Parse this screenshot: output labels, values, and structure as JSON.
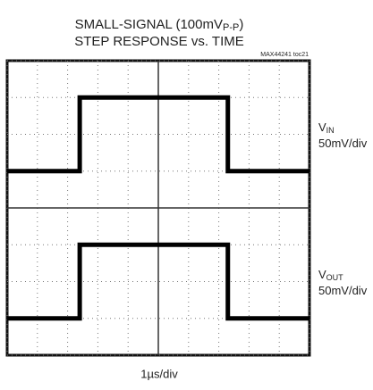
{
  "chart_data": {
    "type": "line",
    "title_parts": [
      "SMALL-SIGNAL (100mV",
      "P-P",
      ")"
    ],
    "subtitle": "STEP RESPONSE vs. TIME",
    "code": "MAX44241 toc21",
    "xlabel": "1µs/div",
    "x": [
      0,
      2.4,
      2.4,
      7.3,
      7.3,
      10
    ],
    "series": [
      {
        "label": [
          "V",
          "IN"
        ],
        "scale": "50mV/div",
        "color": "#000000",
        "values": [
          5.0,
          5.0,
          7.0,
          7.0,
          5.0,
          5.0
        ]
      },
      {
        "label": [
          "V",
          "OUT"
        ],
        "scale": "50mV/div",
        "color": "#000000",
        "values": [
          1.0,
          1.0,
          3.0,
          3.0,
          1.0,
          1.0
        ]
      }
    ],
    "xlim": [
      0,
      10
    ],
    "ylim": [
      0,
      8
    ],
    "xticks": [
      0,
      1,
      2,
      3,
      4,
      5,
      6,
      7,
      8,
      9,
      10
    ],
    "yticks": [
      0,
      1,
      2,
      3,
      4,
      5,
      6,
      7,
      8
    ],
    "grid": true
  }
}
